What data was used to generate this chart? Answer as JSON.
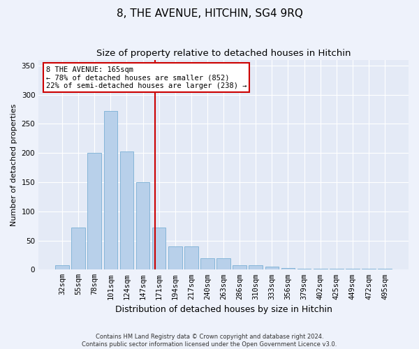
{
  "title": "8, THE AVENUE, HITCHIN, SG4 9RQ",
  "subtitle": "Size of property relative to detached houses in Hitchin",
  "xlabel": "Distribution of detached houses by size in Hitchin",
  "ylabel": "Number of detached properties",
  "categories": [
    "32sqm",
    "55sqm",
    "78sqm",
    "101sqm",
    "124sqm",
    "147sqm",
    "171sqm",
    "194sqm",
    "217sqm",
    "240sqm",
    "263sqm",
    "286sqm",
    "310sqm",
    "333sqm",
    "356sqm",
    "379sqm",
    "402sqm",
    "425sqm",
    "449sqm",
    "472sqm",
    "495sqm"
  ],
  "values": [
    7,
    72,
    200,
    272,
    203,
    150,
    72,
    40,
    40,
    20,
    20,
    8,
    7,
    5,
    3,
    2,
    1,
    1,
    1,
    1,
    1
  ],
  "bar_color": "#b8d0ea",
  "bar_edge_color": "#7aafd4",
  "vline_color": "#cc0000",
  "vline_pos": 5.75,
  "annotation_text": "8 THE AVENUE: 165sqm\n← 78% of detached houses are smaller (852)\n22% of semi-detached houses are larger (238) →",
  "annotation_box_color": "#ffffff",
  "annotation_box_edge": "#cc0000",
  "ylim": [
    0,
    360
  ],
  "yticks": [
    0,
    50,
    100,
    150,
    200,
    250,
    300,
    350
  ],
  "background_color": "#eef2fb",
  "plot_bg_color": "#e4eaf6",
  "grid_color": "#ffffff",
  "footer1": "Contains HM Land Registry data © Crown copyright and database right 2024.",
  "footer2": "Contains public sector information licensed under the Open Government Licence v3.0.",
  "title_fontsize": 11,
  "subtitle_fontsize": 9.5,
  "tick_fontsize": 7.5,
  "xlabel_fontsize": 9,
  "ylabel_fontsize": 8,
  "annotation_fontsize": 7.5
}
